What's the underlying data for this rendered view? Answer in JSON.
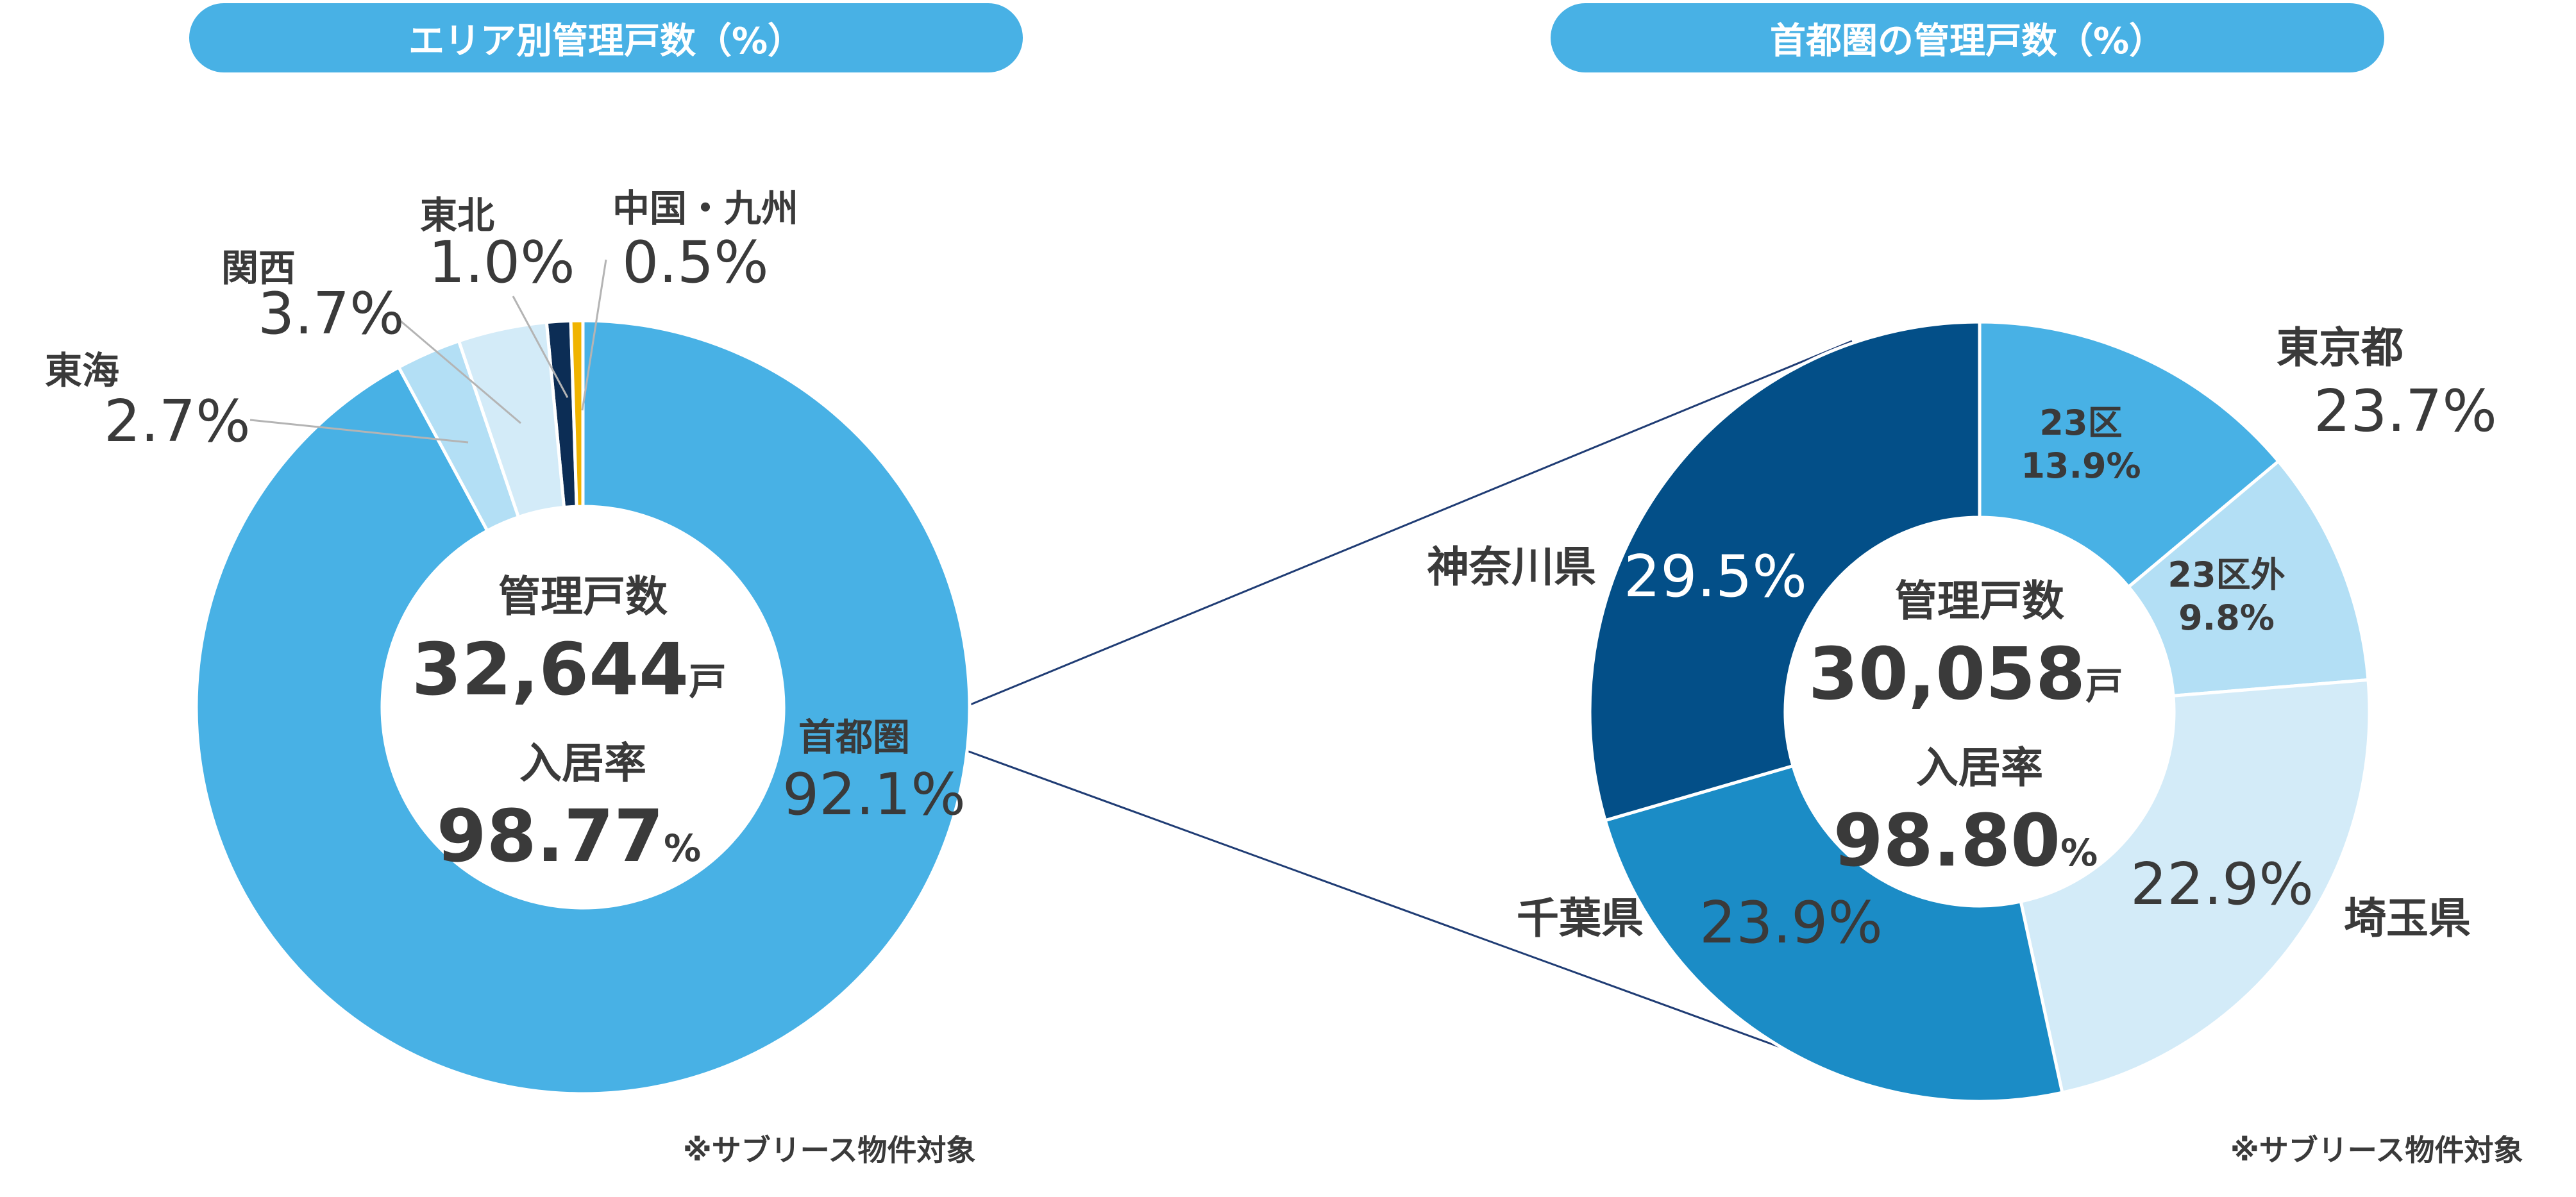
{
  "left_chart": {
    "title": "エリア別管理戸数（%）",
    "center": {
      "label1": "管理戸数",
      "value1": "32,644",
      "unit1": "戸",
      "label2": "入居率",
      "value2": "98.77",
      "unit2": "%"
    },
    "note": "※サブリース物件対象"
  },
  "right_chart": {
    "title": "首都圏の管理戸数（%）",
    "center": {
      "label1": "管理戸数",
      "value1": "30,058",
      "unit1": "戸",
      "label2": "入居率",
      "value2": "98.80",
      "unit2": "%"
    },
    "tokyo_label": "東京都",
    "tokyo_total": "23.7%",
    "note": "※サブリース物件対象"
  },
  "colors": {
    "accent": "#48b1e5",
    "text": "#3a3a3a",
    "leader": "#b4b4b4",
    "connector": "#1f3c74"
  },
  "chart_data": [
    {
      "type": "pie",
      "title": "エリア別管理戸数（%）",
      "hole": true,
      "slices": [
        {
          "name": "首都圏",
          "value": 92.1,
          "label": "92.1%",
          "color": "#48b1e5"
        },
        {
          "name": "東海",
          "value": 2.7,
          "label": "2.7%",
          "color": "#b3dff5"
        },
        {
          "name": "関西",
          "value": 3.7,
          "label": "3.7%",
          "color": "#d3ebf8"
        },
        {
          "name": "東北",
          "value": 1.0,
          "label": "1.0%",
          "color": "#0c2d55"
        },
        {
          "name": "中国・九州",
          "value": 0.5,
          "label": "0.5%",
          "color": "#f0b400"
        }
      ]
    },
    {
      "type": "pie",
      "title": "首都圏の管理戸数（%）",
      "hole": true,
      "slices": [
        {
          "name": "23区",
          "value": 13.9,
          "label": "13.9%",
          "color": "#48b1e5"
        },
        {
          "name": "23区外",
          "value": 9.8,
          "label": "9.8%",
          "color": "#b3dff5"
        },
        {
          "name": "埼玉県",
          "value": 22.9,
          "label": "22.9%",
          "color": "#d3ebf8"
        },
        {
          "name": "千葉県",
          "value": 23.9,
          "label": "23.9%",
          "color": "#1b8cc6"
        },
        {
          "name": "神奈川県",
          "value": 29.5,
          "label": "29.5%",
          "color": "#034f88"
        }
      ]
    }
  ]
}
